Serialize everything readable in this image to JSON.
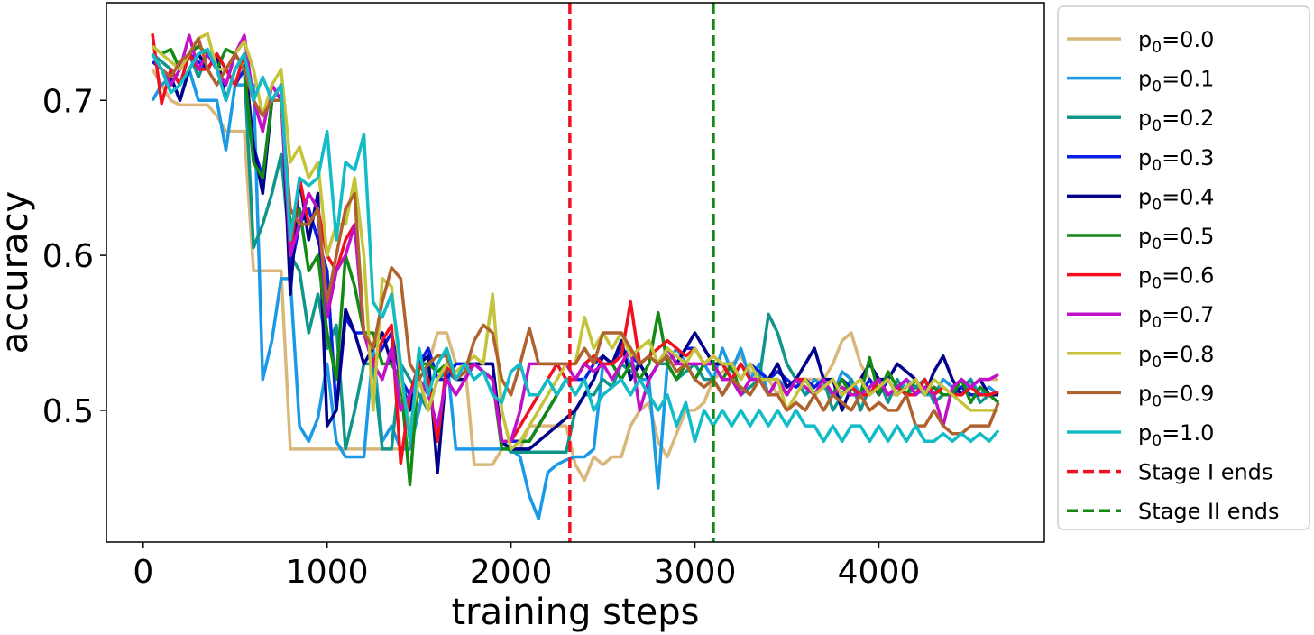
{
  "chart_data": {
    "type": "line",
    "title": "",
    "xlabel": "training steps",
    "ylabel": "accuracy",
    "xlim": [
      -200,
      4900
    ],
    "ylim": [
      0.415,
      0.763
    ],
    "xticks": [
      0,
      1000,
      2000,
      3000,
      4000
    ],
    "xtick_labels": [
      "0",
      "1000",
      "2000",
      "3000",
      "4000"
    ],
    "yticks": [
      0.5,
      0.6,
      0.7
    ],
    "ytick_labels": [
      "0.5",
      "0.6",
      "0.7"
    ],
    "grid": false,
    "legend_position": "outside-right",
    "x": [
      50,
      100,
      150,
      200,
      250,
      300,
      350,
      400,
      450,
      500,
      550,
      600,
      650,
      700,
      750,
      800,
      850,
      900,
      950,
      1000,
      1050,
      1100,
      1150,
      1200,
      1250,
      1300,
      1350,
      1400,
      1450,
      1500,
      1550,
      1600,
      1650,
      1700,
      1750,
      1800,
      1850,
      1900,
      1950,
      2000,
      2050,
      2100,
      2150,
      2200,
      2250,
      2300,
      2350,
      2400,
      2450,
      2500,
      2550,
      2600,
      2650,
      2700,
      2750,
      2800,
      2850,
      2900,
      2950,
      3000,
      3050,
      3100,
      3150,
      3200,
      3250,
      3300,
      3350,
      3400,
      3450,
      3500,
      3550,
      3600,
      3650,
      3700,
      3750,
      3800,
      3850,
      3900,
      3950,
      4000,
      4050,
      4100,
      4150,
      4200,
      4250,
      4300,
      4350,
      4400,
      4450,
      4500,
      4550,
      4600,
      4650
    ],
    "series": [
      {
        "label": "p",
        "sub": "0",
        "suffix": "=0.0",
        "color": "#d9b77a",
        "values": [
          0.72,
          0.71,
          0.7,
          0.697,
          0.697,
          0.697,
          0.697,
          0.69,
          0.68,
          0.68,
          0.68,
          0.59,
          0.59,
          0.59,
          0.59,
          0.475,
          0.475,
          0.475,
          0.475,
          0.475,
          0.475,
          0.475,
          0.475,
          0.475,
          0.475,
          0.475,
          0.475,
          0.475,
          0.48,
          0.5,
          0.53,
          0.55,
          0.55,
          0.53,
          0.53,
          0.465,
          0.465,
          0.465,
          0.475,
          0.475,
          0.475,
          0.49,
          0.49,
          0.49,
          0.49,
          0.49,
          0.465,
          0.455,
          0.47,
          0.465,
          0.47,
          0.47,
          0.49,
          0.5,
          0.505,
          0.48,
          0.47,
          0.485,
          0.5,
          0.5,
          0.505,
          0.52,
          0.525,
          0.53,
          0.535,
          0.525,
          0.52,
          0.52,
          0.51,
          0.52,
          0.515,
          0.52,
          0.52,
          0.52,
          0.53,
          0.545,
          0.55,
          0.53,
          0.52,
          0.515,
          0.51,
          0.51,
          0.52,
          0.515,
          0.52,
          0.51,
          0.52,
          0.515,
          0.51,
          0.515,
          0.52,
          0.52,
          0.52
        ]
      },
      {
        "label": "p",
        "sub": "0",
        "suffix": "=0.1",
        "color": "#1a9ae6",
        "values": [
          0.7,
          0.71,
          0.715,
          0.7,
          0.72,
          0.7,
          0.7,
          0.7,
          0.668,
          0.71,
          0.71,
          0.71,
          0.52,
          0.545,
          0.585,
          0.585,
          0.49,
          0.48,
          0.495,
          0.53,
          0.48,
          0.47,
          0.47,
          0.47,
          0.54,
          0.48,
          0.49,
          0.475,
          0.475,
          0.5,
          0.53,
          0.535,
          0.535,
          0.475,
          0.475,
          0.475,
          0.475,
          0.475,
          0.475,
          0.475,
          0.47,
          0.445,
          0.43,
          0.46,
          0.465,
          0.468,
          0.47,
          0.47,
          0.475,
          0.53,
          0.53,
          0.54,
          0.53,
          0.52,
          0.52,
          0.45,
          0.53,
          0.54,
          0.53,
          0.52,
          0.53,
          0.52,
          0.54,
          0.525,
          0.54,
          0.52,
          0.53,
          0.51,
          0.52,
          0.515,
          0.52,
          0.51,
          0.52,
          0.515,
          0.51,
          0.525,
          0.52,
          0.51,
          0.52,
          0.51,
          0.52,
          0.51,
          0.52,
          0.515,
          0.51,
          0.51,
          0.52,
          0.515,
          0.51,
          0.52,
          0.51,
          0.515,
          0.51
        ]
      },
      {
        "label": "p",
        "sub": "0",
        "suffix": "=0.2",
        "color": "#10958a",
        "values": [
          0.73,
          0.725,
          0.72,
          0.71,
          0.73,
          0.715,
          0.73,
          0.72,
          0.71,
          0.73,
          0.72,
          0.605,
          0.62,
          0.64,
          0.665,
          0.6,
          0.59,
          0.55,
          0.575,
          0.54,
          0.555,
          0.475,
          0.5,
          0.53,
          0.53,
          0.475,
          0.475,
          0.53,
          0.52,
          0.51,
          0.5,
          0.52,
          0.525,
          0.52,
          0.525,
          0.53,
          0.525,
          0.52,
          0.48,
          0.473,
          0.473,
          0.473,
          0.473,
          0.473,
          0.473,
          0.473,
          0.5,
          0.51,
          0.51,
          0.52,
          0.515,
          0.53,
          0.525,
          0.53,
          0.52,
          0.53,
          0.53,
          0.52,
          0.525,
          0.53,
          0.52,
          0.52,
          0.51,
          0.52,
          0.51,
          0.515,
          0.52,
          0.562,
          0.55,
          0.53,
          0.52,
          0.51,
          0.515,
          0.52,
          0.5,
          0.51,
          0.52,
          0.5,
          0.515,
          0.52,
          0.505,
          0.52,
          0.51,
          0.515,
          0.52,
          0.505,
          0.51,
          0.51,
          0.515,
          0.52,
          0.505,
          0.51,
          0.505
        ]
      },
      {
        "label": "p",
        "sub": "0",
        "suffix": "=0.3",
        "color": "#0a1ee6",
        "values": [
          0.725,
          0.72,
          0.71,
          0.72,
          0.73,
          0.725,
          0.72,
          0.73,
          0.72,
          0.71,
          0.72,
          0.67,
          0.65,
          0.7,
          0.71,
          0.59,
          0.62,
          0.63,
          0.61,
          0.59,
          0.5,
          0.56,
          0.55,
          0.55,
          0.53,
          0.54,
          0.55,
          0.52,
          0.51,
          0.53,
          0.54,
          0.52,
          0.52,
          0.53,
          0.53,
          0.53,
          0.53,
          0.53,
          0.48,
          0.48,
          0.48,
          0.48,
          0.49,
          0.5,
          0.51,
          0.52,
          0.52,
          0.52,
          0.53,
          0.535,
          0.53,
          0.54,
          0.535,
          0.53,
          0.52,
          0.53,
          0.54,
          0.53,
          0.54,
          0.54,
          0.53,
          0.53,
          0.53,
          0.53,
          0.52,
          0.53,
          0.525,
          0.52,
          0.525,
          0.52,
          0.515,
          0.52,
          0.515,
          0.52,
          0.51,
          0.52,
          0.515,
          0.51,
          0.52,
          0.51,
          0.52,
          0.51,
          0.515,
          0.52,
          0.51,
          0.515,
          0.51,
          0.51,
          0.515,
          0.51,
          0.51,
          0.51,
          0.51
        ]
      },
      {
        "label": "p",
        "sub": "0",
        "suffix": "=0.4",
        "color": "#00008b",
        "values": [
          0.73,
          0.72,
          0.715,
          0.7,
          0.72,
          0.73,
          0.72,
          0.73,
          0.7,
          0.72,
          0.73,
          0.67,
          0.64,
          0.7,
          0.71,
          0.575,
          0.65,
          0.61,
          0.64,
          0.49,
          0.5,
          0.565,
          0.55,
          0.53,
          0.54,
          0.55,
          0.53,
          0.52,
          0.5,
          0.53,
          0.535,
          0.46,
          0.53,
          0.52,
          0.52,
          0.53,
          0.53,
          0.53,
          0.48,
          0.475,
          0.475,
          0.475,
          0.48,
          0.485,
          0.49,
          0.495,
          0.5,
          0.51,
          0.52,
          0.535,
          0.53,
          0.545,
          0.52,
          0.53,
          0.52,
          0.53,
          0.54,
          0.53,
          0.54,
          0.55,
          0.54,
          0.53,
          0.53,
          0.52,
          0.53,
          0.52,
          0.52,
          0.52,
          0.53,
          0.515,
          0.52,
          0.53,
          0.54,
          0.52,
          0.52,
          0.5,
          0.515,
          0.52,
          0.53,
          0.52,
          0.52,
          0.53,
          0.525,
          0.52,
          0.51,
          0.525,
          0.535,
          0.52,
          0.51,
          0.515,
          0.52,
          0.51,
          0.51
        ]
      },
      {
        "label": "p",
        "sub": "0",
        "suffix": "=0.5",
        "color": "#138a13",
        "values": [
          0.735,
          0.73,
          0.733,
          0.72,
          0.73,
          0.735,
          0.73,
          0.72,
          0.733,
          0.73,
          0.72,
          0.66,
          0.65,
          0.7,
          0.7,
          0.62,
          0.63,
          0.59,
          0.6,
          0.55,
          0.52,
          0.6,
          0.58,
          0.55,
          0.55,
          0.53,
          0.53,
          0.52,
          0.452,
          0.53,
          0.53,
          0.525,
          0.53,
          0.52,
          0.525,
          0.53,
          0.525,
          0.52,
          0.475,
          0.475,
          0.48,
          0.48,
          0.49,
          0.5,
          0.51,
          0.52,
          0.52,
          0.53,
          0.535,
          0.53,
          0.53,
          0.52,
          0.53,
          0.52,
          0.53,
          0.563,
          0.53,
          0.52,
          0.53,
          0.52,
          0.53,
          0.53,
          0.52,
          0.53,
          0.51,
          0.52,
          0.52,
          0.51,
          0.52,
          0.51,
          0.52,
          0.52,
          0.51,
          0.52,
          0.51,
          0.52,
          0.51,
          0.51,
          0.534,
          0.51,
          0.525,
          0.515,
          0.51,
          0.52,
          0.51,
          0.515,
          0.51,
          0.51,
          0.52,
          0.505,
          0.515,
          0.51,
          0.505
        ]
      },
      {
        "label": "p",
        "sub": "0",
        "suffix": "=0.6",
        "color": "#f01020",
        "values": [
          0.743,
          0.698,
          0.72,
          0.71,
          0.73,
          0.72,
          0.72,
          0.73,
          0.72,
          0.71,
          0.73,
          0.7,
          0.69,
          0.7,
          0.71,
          0.6,
          0.65,
          0.62,
          0.63,
          0.6,
          0.59,
          0.61,
          0.62,
          0.55,
          0.53,
          0.545,
          0.555,
          0.466,
          0.51,
          0.53,
          0.52,
          0.48,
          0.53,
          0.52,
          0.525,
          0.53,
          0.525,
          0.52,
          0.48,
          0.48,
          0.49,
          0.5,
          0.51,
          0.52,
          0.53,
          0.52,
          0.52,
          0.53,
          0.535,
          0.53,
          0.53,
          0.535,
          0.57,
          0.53,
          0.535,
          0.54,
          0.545,
          0.54,
          0.535,
          0.54,
          0.53,
          0.535,
          0.53,
          0.52,
          0.53,
          0.52,
          0.52,
          0.51,
          0.52,
          0.51,
          0.52,
          0.52,
          0.51,
          0.515,
          0.52,
          0.51,
          0.515,
          0.51,
          0.51,
          0.52,
          0.51,
          0.515,
          0.51,
          0.51,
          0.52,
          0.51,
          0.515,
          0.51,
          0.51,
          0.515,
          0.51,
          0.51,
          0.512
        ]
      },
      {
        "label": "p",
        "sub": "0",
        "suffix": "=0.7",
        "color": "#c010c8",
        "values": [
          0.73,
          0.72,
          0.71,
          0.72,
          0.742,
          0.72,
          0.73,
          0.72,
          0.71,
          0.73,
          0.742,
          0.7,
          0.68,
          0.71,
          0.7,
          0.6,
          0.62,
          0.64,
          0.63,
          0.56,
          0.59,
          0.6,
          0.62,
          0.55,
          0.53,
          0.52,
          0.54,
          0.5,
          0.51,
          0.52,
          0.51,
          0.49,
          0.52,
          0.51,
          0.52,
          0.53,
          0.525,
          0.52,
          0.48,
          0.48,
          0.5,
          0.53,
          0.53,
          0.53,
          0.53,
          0.53,
          0.52,
          0.53,
          0.525,
          0.53,
          0.52,
          0.53,
          0.54,
          0.5,
          0.52,
          0.53,
          0.54,
          0.53,
          0.53,
          0.53,
          0.53,
          0.53,
          0.52,
          0.52,
          0.51,
          0.52,
          0.52,
          0.51,
          0.52,
          0.51,
          0.52,
          0.515,
          0.51,
          0.52,
          0.51,
          0.515,
          0.51,
          0.51,
          0.515,
          0.52,
          0.51,
          0.515,
          0.52,
          0.51,
          0.515,
          0.51,
          0.49,
          0.515,
          0.52,
          0.515,
          0.52,
          0.52,
          0.523
        ]
      },
      {
        "label": "p",
        "sub": "0",
        "suffix": "=0.8",
        "color": "#c4c43a",
        "values": [
          0.735,
          0.73,
          0.725,
          0.72,
          0.73,
          0.74,
          0.743,
          0.72,
          0.72,
          0.73,
          0.738,
          0.72,
          0.69,
          0.71,
          0.72,
          0.66,
          0.67,
          0.65,
          0.66,
          0.6,
          0.62,
          0.62,
          0.65,
          0.6,
          0.5,
          0.585,
          0.58,
          0.52,
          0.49,
          0.52,
          0.5,
          0.52,
          0.53,
          0.525,
          0.53,
          0.535,
          0.53,
          0.575,
          0.5,
          0.475,
          0.48,
          0.49,
          0.5,
          0.51,
          0.52,
          0.53,
          0.53,
          0.56,
          0.54,
          0.55,
          0.54,
          0.55,
          0.535,
          0.54,
          0.545,
          0.53,
          0.54,
          0.535,
          0.53,
          0.54,
          0.53,
          0.535,
          0.53,
          0.53,
          0.52,
          0.53,
          0.52,
          0.52,
          0.52,
          0.5,
          0.51,
          0.52,
          0.51,
          0.515,
          0.52,
          0.51,
          0.515,
          0.52,
          0.51,
          0.515,
          0.52,
          0.51,
          0.515,
          0.52,
          0.51,
          0.52,
          0.515,
          0.51,
          0.505,
          0.5,
          0.5,
          0.5,
          0.5
        ]
      },
      {
        "label": "p",
        "sub": "0",
        "suffix": "=0.9",
        "color": "#b0622e",
        "values": [
          0.73,
          0.72,
          0.715,
          0.725,
          0.73,
          0.74,
          0.72,
          0.71,
          0.72,
          0.73,
          0.72,
          0.7,
          0.69,
          0.7,
          0.7,
          0.63,
          0.62,
          0.62,
          0.63,
          0.57,
          0.6,
          0.63,
          0.64,
          0.55,
          0.54,
          0.57,
          0.592,
          0.585,
          0.53,
          0.52,
          0.53,
          0.535,
          0.535,
          0.52,
          0.525,
          0.545,
          0.555,
          0.55,
          0.52,
          0.51,
          0.53,
          0.553,
          0.53,
          0.53,
          0.53,
          0.53,
          0.53,
          0.54,
          0.53,
          0.55,
          0.55,
          0.55,
          0.54,
          0.53,
          0.535,
          0.53,
          0.535,
          0.525,
          0.53,
          0.52,
          0.515,
          0.52,
          0.51,
          0.52,
          0.515,
          0.51,
          0.52,
          0.51,
          0.51,
          0.5,
          0.505,
          0.5,
          0.51,
          0.5,
          0.51,
          0.505,
          0.5,
          0.51,
          0.5,
          0.505,
          0.5,
          0.5,
          0.51,
          0.49,
          0.49,
          0.5,
          0.49,
          0.485,
          0.485,
          0.49,
          0.49,
          0.49,
          0.505
        ]
      },
      {
        "label": "p",
        "sub": "0",
        "suffix": "=1.0",
        "color": "#12bcc6",
        "values": [
          0.73,
          0.72,
          0.705,
          0.71,
          0.72,
          0.73,
          0.733,
          0.72,
          0.7,
          0.72,
          0.73,
          0.7,
          0.715,
          0.7,
          0.71,
          0.61,
          0.65,
          0.645,
          0.65,
          0.68,
          0.61,
          0.66,
          0.655,
          0.678,
          0.57,
          0.56,
          0.575,
          0.53,
          0.48,
          0.54,
          0.51,
          0.53,
          0.54,
          0.52,
          0.53,
          0.52,
          0.525,
          0.51,
          0.505,
          0.525,
          0.53,
          0.51,
          0.51,
          0.52,
          0.51,
          0.52,
          0.51,
          0.52,
          0.5,
          0.51,
          0.515,
          0.52,
          0.51,
          0.52,
          0.51,
          0.5,
          0.51,
          0.49,
          0.505,
          0.48,
          0.5,
          0.49,
          0.5,
          0.49,
          0.5,
          0.49,
          0.5,
          0.49,
          0.5,
          0.49,
          0.5,
          0.49,
          0.49,
          0.48,
          0.49,
          0.48,
          0.49,
          0.49,
          0.48,
          0.49,
          0.48,
          0.49,
          0.48,
          0.49,
          0.48,
          0.48,
          0.485,
          0.48,
          0.485,
          0.48,
          0.485,
          0.48,
          0.487
        ]
      }
    ],
    "vlines": [
      {
        "x": 2320,
        "color": "#f01020",
        "label": "Stage I ends"
      },
      {
        "x": 3100,
        "color": "#138a13",
        "label": "Stage II ends"
      }
    ]
  }
}
